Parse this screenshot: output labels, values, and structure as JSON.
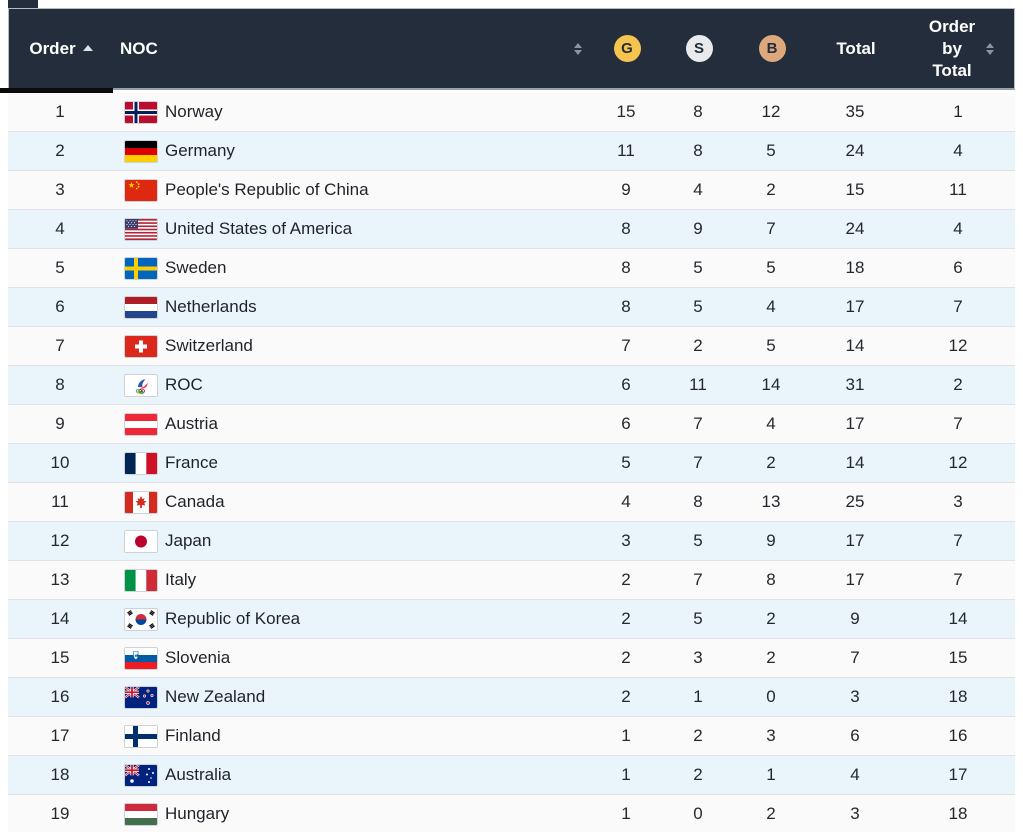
{
  "header": {
    "order_label": "Order",
    "noc_label": "NOC",
    "gold_label": "G",
    "silver_label": "S",
    "bronze_label": "B",
    "total_label": "Total",
    "order_by_total_label": "Order by Total",
    "sort": {
      "active_column": "Order",
      "direction": "ascending"
    }
  },
  "colors": {
    "header_bg": "#232d3b",
    "header_text": "#ffffff",
    "gold": "#f5c44e",
    "silver": "#e8eaeb",
    "bronze": "#dfa87c",
    "row_odd": "#fafafa",
    "row_even": "#e9f4fb",
    "row_border": "#dfe3e7",
    "scrollbar_thumb": "#0b0b0b"
  },
  "rows": [
    {
      "order": "1",
      "flag": "norway",
      "noc": "Norway",
      "gold": "15",
      "silver": "8",
      "bronze": "12",
      "total": "35",
      "order_by_total": "1"
    },
    {
      "order": "2",
      "flag": "germany",
      "noc": "Germany",
      "gold": "11",
      "silver": "8",
      "bronze": "5",
      "total": "24",
      "order_by_total": "4"
    },
    {
      "order": "3",
      "flag": "china",
      "noc": "People's Republic of China",
      "gold": "9",
      "silver": "4",
      "bronze": "2",
      "total": "15",
      "order_by_total": "11"
    },
    {
      "order": "4",
      "flag": "usa",
      "noc": "United States of America",
      "gold": "8",
      "silver": "9",
      "bronze": "7",
      "total": "24",
      "order_by_total": "4"
    },
    {
      "order": "5",
      "flag": "sweden",
      "noc": "Sweden",
      "gold": "8",
      "silver": "5",
      "bronze": "5",
      "total": "18",
      "order_by_total": "6"
    },
    {
      "order": "6",
      "flag": "netherlands",
      "noc": "Netherlands",
      "gold": "8",
      "silver": "5",
      "bronze": "4",
      "total": "17",
      "order_by_total": "7"
    },
    {
      "order": "7",
      "flag": "switzerland",
      "noc": "Switzerland",
      "gold": "7",
      "silver": "2",
      "bronze": "5",
      "total": "14",
      "order_by_total": "12"
    },
    {
      "order": "8",
      "flag": "roc",
      "noc": "ROC",
      "gold": "6",
      "silver": "11",
      "bronze": "14",
      "total": "31",
      "order_by_total": "2"
    },
    {
      "order": "9",
      "flag": "austria",
      "noc": "Austria",
      "gold": "6",
      "silver": "7",
      "bronze": "4",
      "total": "17",
      "order_by_total": "7"
    },
    {
      "order": "10",
      "flag": "france",
      "noc": "France",
      "gold": "5",
      "silver": "7",
      "bronze": "2",
      "total": "14",
      "order_by_total": "12"
    },
    {
      "order": "11",
      "flag": "canada",
      "noc": "Canada",
      "gold": "4",
      "silver": "8",
      "bronze": "13",
      "total": "25",
      "order_by_total": "3"
    },
    {
      "order": "12",
      "flag": "japan",
      "noc": "Japan",
      "gold": "3",
      "silver": "5",
      "bronze": "9",
      "total": "17",
      "order_by_total": "7"
    },
    {
      "order": "13",
      "flag": "italy",
      "noc": "Italy",
      "gold": "2",
      "silver": "7",
      "bronze": "8",
      "total": "17",
      "order_by_total": "7"
    },
    {
      "order": "14",
      "flag": "korea",
      "noc": "Republic of Korea",
      "gold": "2",
      "silver": "5",
      "bronze": "2",
      "total": "9",
      "order_by_total": "14"
    },
    {
      "order": "15",
      "flag": "slovenia",
      "noc": "Slovenia",
      "gold": "2",
      "silver": "3",
      "bronze": "2",
      "total": "7",
      "order_by_total": "15"
    },
    {
      "order": "16",
      "flag": "new-zealand",
      "noc": "New Zealand",
      "gold": "2",
      "silver": "1",
      "bronze": "0",
      "total": "3",
      "order_by_total": "18"
    },
    {
      "order": "17",
      "flag": "finland",
      "noc": "Finland",
      "gold": "1",
      "silver": "2",
      "bronze": "3",
      "total": "6",
      "order_by_total": "16"
    },
    {
      "order": "18",
      "flag": "australia",
      "noc": "Australia",
      "gold": "1",
      "silver": "2",
      "bronze": "1",
      "total": "4",
      "order_by_total": "17"
    },
    {
      "order": "19",
      "flag": "hungary",
      "noc": "Hungary",
      "gold": "1",
      "silver": "0",
      "bronze": "2",
      "total": "3",
      "order_by_total": "18"
    }
  ]
}
